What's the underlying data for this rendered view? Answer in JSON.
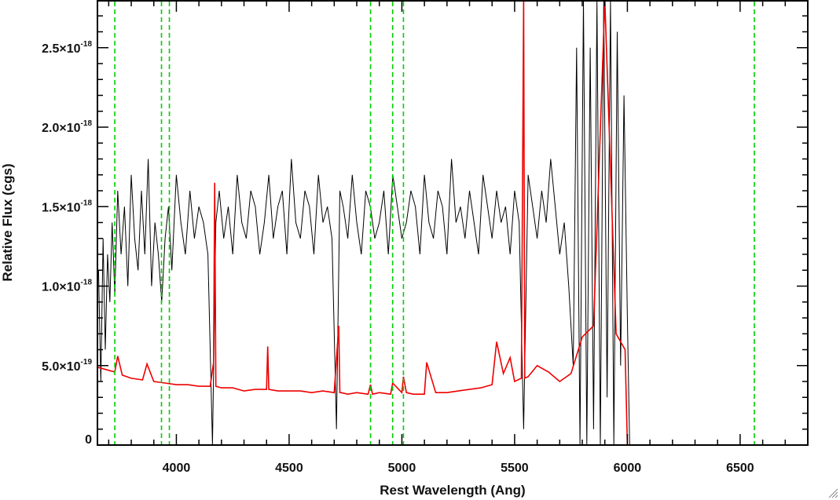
{
  "chart_data": {
    "type": "line",
    "xlabel": "Rest Wavelength (Ang)",
    "ylabel": "Relative Flux (cgs)",
    "xlim": [
      3650,
      6800
    ],
    "ylim": [
      0,
      2.8e-18
    ],
    "grid": false,
    "x_ticks": [
      {
        "value": 4000,
        "label": "4000"
      },
      {
        "value": 4500,
        "label": "4500"
      },
      {
        "value": 5000,
        "label": "5000"
      },
      {
        "value": 5500,
        "label": "5500"
      },
      {
        "value": 6000,
        "label": "6000"
      },
      {
        "value": 6500,
        "label": "6500"
      }
    ],
    "y_ticks": [
      {
        "value": 0,
        "mantissa": "0",
        "exponent": ""
      },
      {
        "value": 5e-19,
        "mantissa": "5.0×10",
        "exponent": "-19"
      },
      {
        "value": 1e-18,
        "mantissa": "1.0×10",
        "exponent": "-18"
      },
      {
        "value": 1.5e-18,
        "mantissa": "1.5×10",
        "exponent": "-18"
      },
      {
        "value": 2e-18,
        "mantissa": "2.0×10",
        "exponent": "-18"
      },
      {
        "value": 2.5e-18,
        "mantissa": "2.5×10",
        "exponent": "-18"
      }
    ],
    "vertical_lines": {
      "color": "#00cc00",
      "style": "dashed",
      "x": [
        3727,
        3934,
        3969,
        4861,
        4959,
        5007,
        6563
      ]
    },
    "series": [
      {
        "color": "#000000",
        "x": [
          3655,
          3665,
          3675,
          3685,
          3695,
          3705,
          3715,
          3727,
          3740,
          3755,
          3770,
          3785,
          3800,
          3815,
          3830,
          3845,
          3860,
          3875,
          3890,
          3905,
          3920,
          3935,
          3950,
          3965,
          3980,
          4000,
          4020,
          4040,
          4060,
          4080,
          4100,
          4120,
          4140,
          4160,
          4175,
          4190,
          4210,
          4230,
          4250,
          4270,
          4290,
          4310,
          4330,
          4350,
          4370,
          4390,
          4410,
          4430,
          4450,
          4470,
          4490,
          4510,
          4530,
          4550,
          4570,
          4590,
          4610,
          4630,
          4650,
          4670,
          4690,
          4710,
          4725,
          4740,
          4760,
          4780,
          4800,
          4820,
          4840,
          4860,
          4880,
          4900,
          4920,
          4940,
          4960,
          4980,
          5000,
          5020,
          5040,
          5060,
          5080,
          5100,
          5120,
          5140,
          5160,
          5180,
          5200,
          5220,
          5240,
          5260,
          5280,
          5300,
          5320,
          5340,
          5360,
          5380,
          5400,
          5420,
          5440,
          5460,
          5480,
          5500,
          5520,
          5540,
          5560,
          5580,
          5600,
          5620,
          5640,
          5660,
          5680,
          5700,
          5720,
          5740,
          5760,
          5775,
          5790,
          5805,
          5820,
          5835,
          5850,
          5865,
          5880,
          5895,
          5910,
          5925,
          5940,
          5955,
          5970,
          5985,
          6000,
          6010,
          6100,
          6300,
          6500,
          6700,
          6800
        ],
        "y": [
          1.1e-18,
          4e-19,
          1.3e-18,
          6e-19,
          1.2e-18,
          9e-19,
          1.4e-18,
          9.5e-19,
          1.6e-18,
          1.2e-18,
          1.5e-18,
          1e-18,
          1.7e-18,
          1.3e-18,
          1.1e-18,
          1.6e-18,
          1.2e-18,
          1.8e-18,
          1e-18,
          1.4e-18,
          1.2e-18,
          9e-19,
          1.3e-18,
          1.5e-18,
          1.1e-18,
          1.7e-18,
          1.4e-18,
          1.2e-18,
          1.6e-18,
          1.3e-18,
          1.5e-18,
          1.4e-18,
          1.2e-18,
          0.0,
          1.4e-18,
          1.6e-18,
          1.3e-18,
          1.5e-18,
          1.2e-18,
          1.7e-18,
          1.4e-18,
          1.3e-18,
          1.6e-18,
          1.5e-18,
          1.2e-18,
          1.4e-18,
          1.7e-18,
          1.3e-18,
          1.5e-18,
          1.6e-18,
          1.2e-18,
          1.8e-18,
          1.4e-18,
          1.3e-18,
          1.6e-18,
          1.5e-18,
          1.2e-18,
          1.7e-18,
          1.4e-18,
          1.5e-18,
          1.3e-18,
          1e-19,
          1.6e-18,
          1.5e-18,
          1.3e-18,
          1.7e-18,
          1.4e-18,
          1.2e-18,
          1.6e-18,
          1.5e-18,
          1.3e-18,
          1.4e-18,
          1.6e-18,
          1.2e-18,
          1.7e-18,
          1.5e-18,
          1.3e-18,
          1.4e-18,
          1.6e-18,
          1.5e-18,
          1.2e-18,
          1.7e-18,
          1.4e-18,
          1.3e-18,
          1.6e-18,
          1.5e-18,
          1.2e-18,
          1.8e-18,
          1.4e-18,
          1.5e-18,
          1.3e-18,
          1.6e-18,
          1.4e-18,
          1.2e-18,
          1.7e-18,
          1.5e-18,
          1.3e-18,
          1.6e-18,
          1.4e-18,
          1.5e-18,
          1.2e-18,
          1.6e-18,
          1.4e-18,
          1e-19,
          1.7e-18,
          1.5e-18,
          1.3e-18,
          1.6e-18,
          1.4e-18,
          1.8e-18,
          1.5e-18,
          1.2e-18,
          1.4e-18,
          1e-18,
          5e-19,
          2.5e-18,
          0.0,
          2.8e-18,
          0.0,
          2.5e-18,
          1e-19,
          2.8e-18,
          0.0,
          2.8e-18,
          3e-19,
          2.8e-18,
          0.0,
          2.6e-18,
          5e-19,
          2.2e-18,
          8e-19,
          0.0,
          0.0,
          0.0,
          0.0,
          0.0,
          0.0
        ]
      },
      {
        "color": "#ee0000",
        "x": [
          3650,
          3700,
          3727,
          3740,
          3760,
          3800,
          3850,
          3870,
          3900,
          3950,
          4000,
          4050,
          4100,
          4150,
          4165,
          4170,
          4175,
          4200,
          4250,
          4300,
          4350,
          4400,
          4405,
          4410,
          4450,
          4500,
          4550,
          4600,
          4650,
          4700,
          4720,
          4725,
          4730,
          4760,
          4800,
          4850,
          4861,
          4870,
          4900,
          4950,
          4959,
          5000,
          5007,
          5020,
          5050,
          5100,
          5110,
          5150,
          5200,
          5250,
          5300,
          5350,
          5400,
          5420,
          5450,
          5480,
          5500,
          5530,
          5540,
          5545,
          5560,
          5600,
          5650,
          5700,
          5750,
          5800,
          5850,
          5900,
          5950,
          5990,
          6000,
          6100,
          6300,
          6500,
          6700,
          6800
        ],
        "y": [
          4.9e-19,
          4.7e-19,
          4.6e-19,
          5.6e-19,
          4.4e-19,
          4.2e-19,
          4.1e-19,
          5.1e-19,
          4e-19,
          3.9e-19,
          3.8e-19,
          3.8e-19,
          3.7e-19,
          3.7e-19,
          5.2e-19,
          1.65e-18,
          3.7e-19,
          3.6e-19,
          3.6e-19,
          3.4e-19,
          3.5e-19,
          3.5e-19,
          6.2e-19,
          3.5e-19,
          3.4e-19,
          3.4e-19,
          3.4e-19,
          3.3e-19,
          3.4e-19,
          3.3e-19,
          7.5e-19,
          3.3e-19,
          3.3e-19,
          3.2e-19,
          3.3e-19,
          3.2e-19,
          3.8e-19,
          3.2e-19,
          3.3e-19,
          3.2e-19,
          3.9e-19,
          3.3e-19,
          4.3e-19,
          3.3e-19,
          3.2e-19,
          3.2e-19,
          5.2e-19,
          3.3e-19,
          3.3e-19,
          3.4e-19,
          3.5e-19,
          3.6e-19,
          3.8e-19,
          6.5e-19,
          4.5e-19,
          5.5e-19,
          4e-19,
          4.2e-19,
          2.8e-18,
          4.2e-19,
          4.3e-19,
          5e-19,
          4.6e-19,
          4e-19,
          4.5e-19,
          6.8e-19,
          7.5e-19,
          2.8e-18,
          7e-19,
          6e-19,
          0.0,
          0.0,
          0.0,
          0.0,
          0.0,
          0.0
        ]
      }
    ]
  }
}
